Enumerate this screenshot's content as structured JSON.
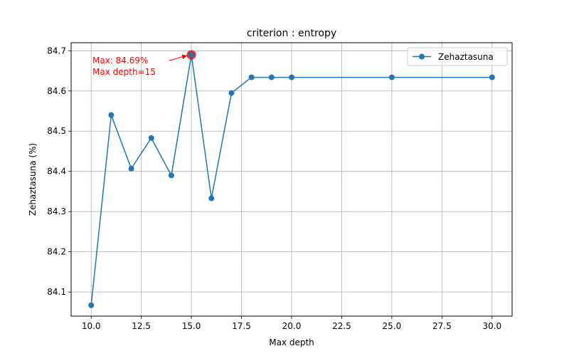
{
  "chart_data": {
    "type": "line",
    "title": "criterion : entropy",
    "xlabel": "Max depth",
    "ylabel": "Zehaztasuna (%)",
    "xlim": [
      9.0,
      31.0
    ],
    "ylim": [
      84.04,
      84.72
    ],
    "xticks": [
      10.0,
      12.5,
      15.0,
      17.5,
      20.0,
      22.5,
      25.0,
      27.5,
      30.0
    ],
    "xtick_labels": [
      "10.0",
      "12.5",
      "15.0",
      "17.5",
      "20.0",
      "22.5",
      "25.0",
      "27.5",
      "30.0"
    ],
    "yticks": [
      84.1,
      84.2,
      84.3,
      84.4,
      84.5,
      84.6,
      84.7
    ],
    "ytick_labels": [
      "84.1",
      "84.2",
      "84.3",
      "84.4",
      "84.5",
      "84.6",
      "84.7"
    ],
    "grid": true,
    "legend_position": "top-right",
    "series": [
      {
        "name": "Zehaztasuna",
        "color": "#1f77b4",
        "marker": "circle",
        "x": [
          10,
          11,
          12,
          13,
          14,
          15,
          16,
          17,
          18,
          19,
          20,
          25,
          30
        ],
        "y": [
          84.067,
          84.54,
          84.407,
          84.483,
          84.39,
          84.69,
          84.333,
          84.595,
          84.634,
          84.634,
          84.634,
          84.634,
          84.634
        ]
      }
    ],
    "highlight": {
      "x": 15,
      "y": 84.69,
      "color": "#ff0000",
      "label_lines": [
        "Max: 84.69%",
        "Max depth=15"
      ]
    }
  }
}
